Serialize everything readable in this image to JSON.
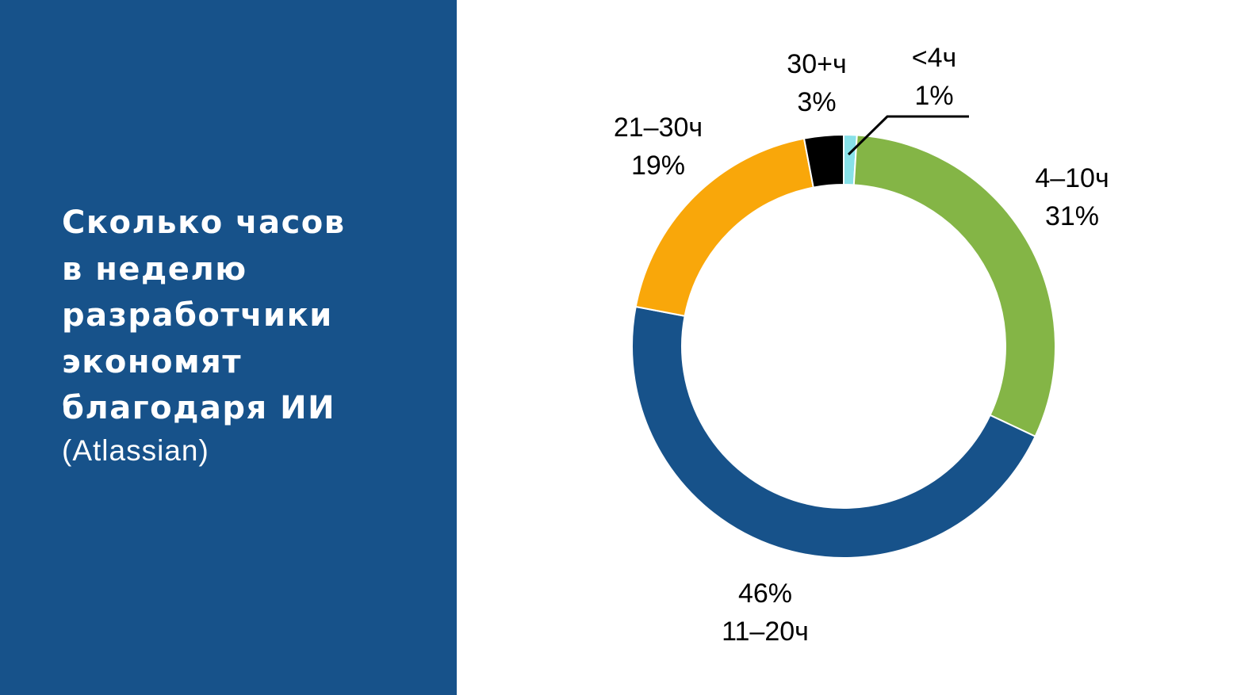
{
  "slide": {
    "title": "Сколько часов\nв неделю\nразработчики\nэкономят\nблагодаря ИИ",
    "subtitle": "(Atlassian)",
    "panel_color": "#17528A",
    "text_color": "#FFFFFF"
  },
  "chart_data": {
    "type": "pie",
    "variant": "donut",
    "title": "",
    "unit": "%",
    "slices": [
      {
        "category": "<4ч",
        "value": 1,
        "value_label": "1%",
        "color": "#88E1E8"
      },
      {
        "category": "4–10ч",
        "value": 31,
        "value_label": "31%",
        "color": "#84B546"
      },
      {
        "category": "11–20ч",
        "value": 46,
        "value_label": "46%",
        "color": "#17528A"
      },
      {
        "category": "21–30ч",
        "value": 19,
        "value_label": "19%",
        "color": "#F9A70A"
      },
      {
        "category": "30+ч",
        "value": 3,
        "value_label": "3%",
        "color": "#000000"
      }
    ],
    "legend": "none"
  }
}
